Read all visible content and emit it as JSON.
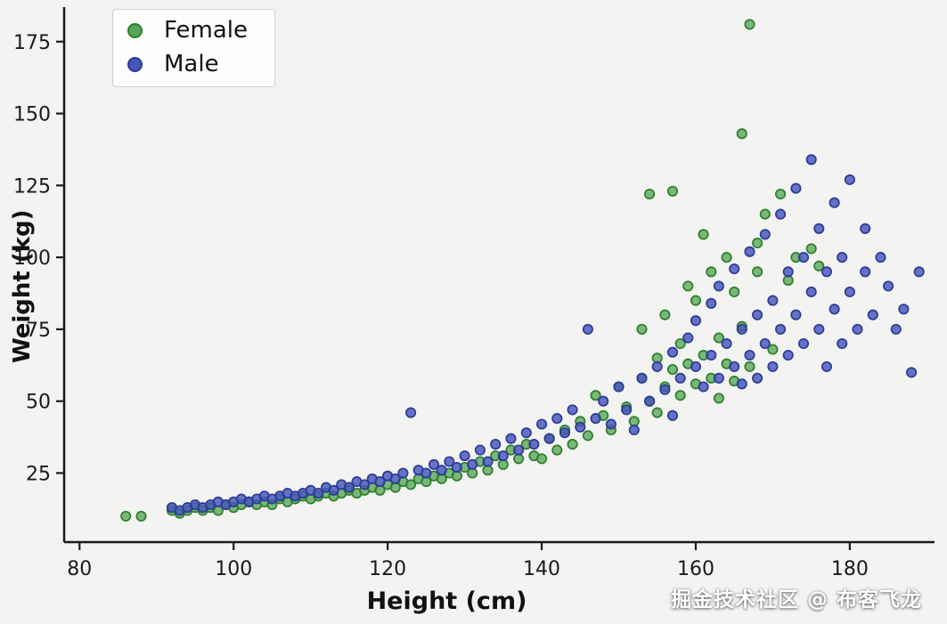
{
  "watermark": "掘金技术社区 @ 布客飞龙",
  "chart_data": {
    "type": "scatter",
    "title": "",
    "xlabel": "Height (cm)",
    "ylabel": "Weight (kg)",
    "xlim": [
      78,
      191
    ],
    "ylim": [
      1,
      187
    ],
    "xticks": [
      80,
      100,
      120,
      140,
      160,
      180
    ],
    "yticks": [
      25,
      50,
      75,
      100,
      125,
      150,
      175
    ],
    "grid": false,
    "legend": {
      "position": "upper-left",
      "entries": [
        "Female",
        "Male"
      ]
    },
    "marker": {
      "radius": 5.2,
      "edge_width": 1.7
    },
    "series": [
      {
        "name": "Female",
        "color": "#57a557",
        "edge": "#2a7e2a",
        "fill_opacity": 0.78,
        "points": [
          [
            86,
            10
          ],
          [
            88,
            10
          ],
          [
            92,
            12
          ],
          [
            93,
            11
          ],
          [
            94,
            12
          ],
          [
            95,
            13
          ],
          [
            96,
            12
          ],
          [
            97,
            13
          ],
          [
            98,
            12
          ],
          [
            99,
            14
          ],
          [
            100,
            13
          ],
          [
            101,
            14
          ],
          [
            102,
            15
          ],
          [
            103,
            14
          ],
          [
            104,
            15
          ],
          [
            105,
            14
          ],
          [
            106,
            16
          ],
          [
            107,
            15
          ],
          [
            108,
            16
          ],
          [
            109,
            17
          ],
          [
            110,
            16
          ],
          [
            111,
            17
          ],
          [
            112,
            18
          ],
          [
            113,
            17
          ],
          [
            114,
            18
          ],
          [
            115,
            19
          ],
          [
            116,
            18
          ],
          [
            117,
            19
          ],
          [
            118,
            20
          ],
          [
            119,
            19
          ],
          [
            120,
            21
          ],
          [
            121,
            20
          ],
          [
            122,
            22
          ],
          [
            123,
            21
          ],
          [
            124,
            23
          ],
          [
            125,
            22
          ],
          [
            126,
            24
          ],
          [
            127,
            23
          ],
          [
            128,
            25
          ],
          [
            129,
            24
          ],
          [
            130,
            27
          ],
          [
            131,
            25
          ],
          [
            132,
            29
          ],
          [
            133,
            26
          ],
          [
            134,
            31
          ],
          [
            135,
            28
          ],
          [
            136,
            33
          ],
          [
            137,
            30
          ],
          [
            138,
            35
          ],
          [
            139,
            31
          ],
          [
            140,
            30
          ],
          [
            141,
            37
          ],
          [
            142,
            33
          ],
          [
            143,
            40
          ],
          [
            144,
            35
          ],
          [
            145,
            43
          ],
          [
            146,
            38
          ],
          [
            147,
            52
          ],
          [
            148,
            45
          ],
          [
            149,
            40
          ],
          [
            150,
            55
          ],
          [
            151,
            48
          ],
          [
            152,
            43
          ],
          [
            153,
            75
          ],
          [
            153,
            58
          ],
          [
            154,
            122
          ],
          [
            154,
            50
          ],
          [
            155,
            65
          ],
          [
            155,
            46
          ],
          [
            156,
            80
          ],
          [
            156,
            55
          ],
          [
            157,
            123
          ],
          [
            157,
            61
          ],
          [
            158,
            70
          ],
          [
            158,
            52
          ],
          [
            159,
            90
          ],
          [
            159,
            63
          ],
          [
            160,
            85
          ],
          [
            160,
            56
          ],
          [
            161,
            108
          ],
          [
            161,
            66
          ],
          [
            162,
            95
          ],
          [
            162,
            58
          ],
          [
            163,
            72
          ],
          [
            163,
            51
          ],
          [
            164,
            100
          ],
          [
            164,
            63
          ],
          [
            165,
            88
          ],
          [
            165,
            57
          ],
          [
            166,
            143
          ],
          [
            166,
            76
          ],
          [
            167,
            181
          ],
          [
            167,
            62
          ],
          [
            168,
            105
          ],
          [
            168,
            95
          ],
          [
            169,
            115
          ],
          [
            170,
            68
          ],
          [
            171,
            122
          ],
          [
            172,
            92
          ],
          [
            173,
            100
          ],
          [
            175,
            103
          ],
          [
            176,
            97
          ]
        ]
      },
      {
        "name": "Male",
        "color": "#4656bb",
        "edge": "#2c3a96",
        "fill_opacity": 0.82,
        "points": [
          [
            92,
            13
          ],
          [
            93,
            12
          ],
          [
            94,
            13
          ],
          [
            95,
            14
          ],
          [
            96,
            13
          ],
          [
            97,
            14
          ],
          [
            98,
            15
          ],
          [
            99,
            14
          ],
          [
            100,
            15
          ],
          [
            101,
            16
          ],
          [
            102,
            15
          ],
          [
            103,
            16
          ],
          [
            104,
            17
          ],
          [
            105,
            16
          ],
          [
            106,
            17
          ],
          [
            107,
            18
          ],
          [
            108,
            17
          ],
          [
            109,
            18
          ],
          [
            110,
            19
          ],
          [
            111,
            18
          ],
          [
            112,
            20
          ],
          [
            113,
            19
          ],
          [
            114,
            21
          ],
          [
            115,
            20
          ],
          [
            116,
            22
          ],
          [
            117,
            21
          ],
          [
            118,
            23
          ],
          [
            119,
            22
          ],
          [
            120,
            24
          ],
          [
            121,
            23
          ],
          [
            122,
            25
          ],
          [
            123,
            46
          ],
          [
            124,
            26
          ],
          [
            125,
            25
          ],
          [
            126,
            28
          ],
          [
            127,
            26
          ],
          [
            128,
            29
          ],
          [
            129,
            27
          ],
          [
            130,
            31
          ],
          [
            131,
            28
          ],
          [
            132,
            33
          ],
          [
            133,
            29
          ],
          [
            134,
            35
          ],
          [
            135,
            31
          ],
          [
            136,
            37
          ],
          [
            137,
            33
          ],
          [
            138,
            39
          ],
          [
            139,
            35
          ],
          [
            140,
            42
          ],
          [
            141,
            37
          ],
          [
            142,
            44
          ],
          [
            143,
            39
          ],
          [
            144,
            47
          ],
          [
            145,
            41
          ],
          [
            146,
            75
          ],
          [
            147,
            44
          ],
          [
            148,
            50
          ],
          [
            149,
            42
          ],
          [
            150,
            55
          ],
          [
            151,
            47
          ],
          [
            152,
            40
          ],
          [
            153,
            58
          ],
          [
            154,
            50
          ],
          [
            155,
            62
          ],
          [
            156,
            54
          ],
          [
            157,
            67
          ],
          [
            157,
            45
          ],
          [
            158,
            58
          ],
          [
            159,
            72
          ],
          [
            160,
            78
          ],
          [
            160,
            62
          ],
          [
            161,
            55
          ],
          [
            162,
            84
          ],
          [
            162,
            66
          ],
          [
            163,
            58
          ],
          [
            163,
            90
          ],
          [
            164,
            70
          ],
          [
            165,
            96
          ],
          [
            165,
            62
          ],
          [
            166,
            75
          ],
          [
            166,
            56
          ],
          [
            167,
            102
          ],
          [
            167,
            66
          ],
          [
            168,
            80
          ],
          [
            168,
            58
          ],
          [
            169,
            108
          ],
          [
            169,
            70
          ],
          [
            170,
            85
          ],
          [
            170,
            62
          ],
          [
            171,
            115
          ],
          [
            171,
            75
          ],
          [
            172,
            95
          ],
          [
            172,
            66
          ],
          [
            173,
            124
          ],
          [
            173,
            80
          ],
          [
            174,
            100
          ],
          [
            174,
            70
          ],
          [
            175,
            134
          ],
          [
            175,
            88
          ],
          [
            176,
            110
          ],
          [
            176,
            75
          ],
          [
            177,
            95
          ],
          [
            177,
            62
          ],
          [
            178,
            119
          ],
          [
            178,
            82
          ],
          [
            179,
            100
          ],
          [
            179,
            70
          ],
          [
            180,
            127
          ],
          [
            180,
            88
          ],
          [
            181,
            75
          ],
          [
            182,
            110
          ],
          [
            182,
            95
          ],
          [
            183,
            80
          ],
          [
            184,
            100
          ],
          [
            185,
            90
          ],
          [
            186,
            75
          ],
          [
            187,
            82
          ],
          [
            188,
            60
          ],
          [
            189,
            95
          ]
        ]
      }
    ]
  }
}
